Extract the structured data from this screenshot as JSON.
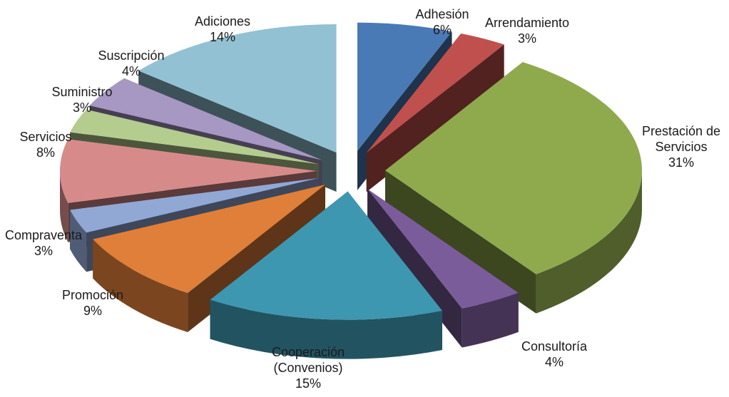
{
  "chart_data": {
    "type": "pie",
    "variant": "3d-exploded",
    "slices": [
      {
        "label": [
          "Adhesión"
        ],
        "percent_label": "6%",
        "value": 6,
        "color": "#4a7ab5"
      },
      {
        "label": [
          "Arrendamiento"
        ],
        "percent_label": "3%",
        "value": 3,
        "color": "#c0504d"
      },
      {
        "label": [
          "Prestación de",
          "Servicios"
        ],
        "percent_label": "31%",
        "value": 31,
        "color": "#8faa4d"
      },
      {
        "label": [
          "Consultoría"
        ],
        "percent_label": "4%",
        "value": 4,
        "color": "#7b5c9a"
      },
      {
        "label": [
          "Cooperación",
          "(Convenios)"
        ],
        "percent_label": "15%",
        "value": 15,
        "color": "#3e97b0"
      },
      {
        "label": [
          "Promoción"
        ],
        "percent_label": "9%",
        "value": 9,
        "color": "#e07f39"
      },
      {
        "label": [
          "Compraventa"
        ],
        "percent_label": "3%",
        "value": 3,
        "color": "#91a8d4"
      },
      {
        "label": [
          "Servicios"
        ],
        "percent_label": "8%",
        "value": 8,
        "color": "#d68b8a"
      },
      {
        "label": [
          "Suministro"
        ],
        "percent_label": "3%",
        "value": 3,
        "color": "#b4cc8e"
      },
      {
        "label": [
          "Suscripción"
        ],
        "percent_label": "4%",
        "value": 4,
        "color": "#a797c3"
      },
      {
        "label": [
          "Adiciones"
        ],
        "percent_label": "14%",
        "value": 14,
        "color": "#92c1d4"
      }
    ]
  }
}
